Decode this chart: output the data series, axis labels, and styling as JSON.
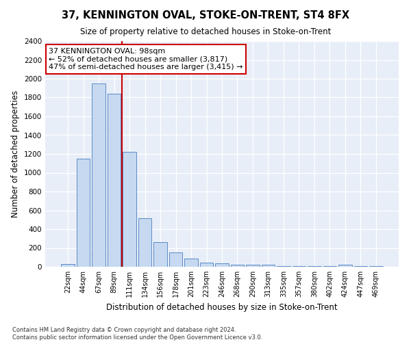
{
  "title": "37, KENNINGTON OVAL, STOKE-ON-TRENT, ST4 8FX",
  "subtitle": "Size of property relative to detached houses in Stoke-on-Trent",
  "xlabel": "Distribution of detached houses by size in Stoke-on-Trent",
  "ylabel": "Number of detached properties",
  "bar_labels": [
    "22sqm",
    "44sqm",
    "67sqm",
    "89sqm",
    "111sqm",
    "134sqm",
    "156sqm",
    "178sqm",
    "201sqm",
    "223sqm",
    "246sqm",
    "268sqm",
    "290sqm",
    "313sqm",
    "335sqm",
    "357sqm",
    "380sqm",
    "402sqm",
    "424sqm",
    "447sqm",
    "469sqm"
  ],
  "bar_values": [
    30,
    1150,
    1950,
    1840,
    1220,
    520,
    265,
    155,
    85,
    45,
    40,
    20,
    20,
    20,
    10,
    10,
    5,
    5,
    20,
    10,
    5
  ],
  "bar_color": "#c6d9f0",
  "bar_edge_color": "#5b8ac5",
  "bar_width": 0.85,
  "vline_x": 3.5,
  "vline_color": "#cc0000",
  "ylim": [
    0,
    2400
  ],
  "yticks": [
    0,
    200,
    400,
    600,
    800,
    1000,
    1200,
    1400,
    1600,
    1800,
    2000,
    2200,
    2400
  ],
  "annotation_text": "37 KENNINGTON OVAL: 98sqm\n← 52% of detached houses are smaller (3,817)\n47% of semi-detached houses are larger (3,415) →",
  "annotation_box_color": "white",
  "annotation_box_edge_color": "#cc0000",
  "footnote": "Contains HM Land Registry data © Crown copyright and database right 2024.\nContains public sector information licensed under the Open Government Licence v3.0.",
  "bg_color": "#e8eef8",
  "grid_color": "white",
  "fig_width": 6.0,
  "fig_height": 5.0,
  "dpi": 100
}
